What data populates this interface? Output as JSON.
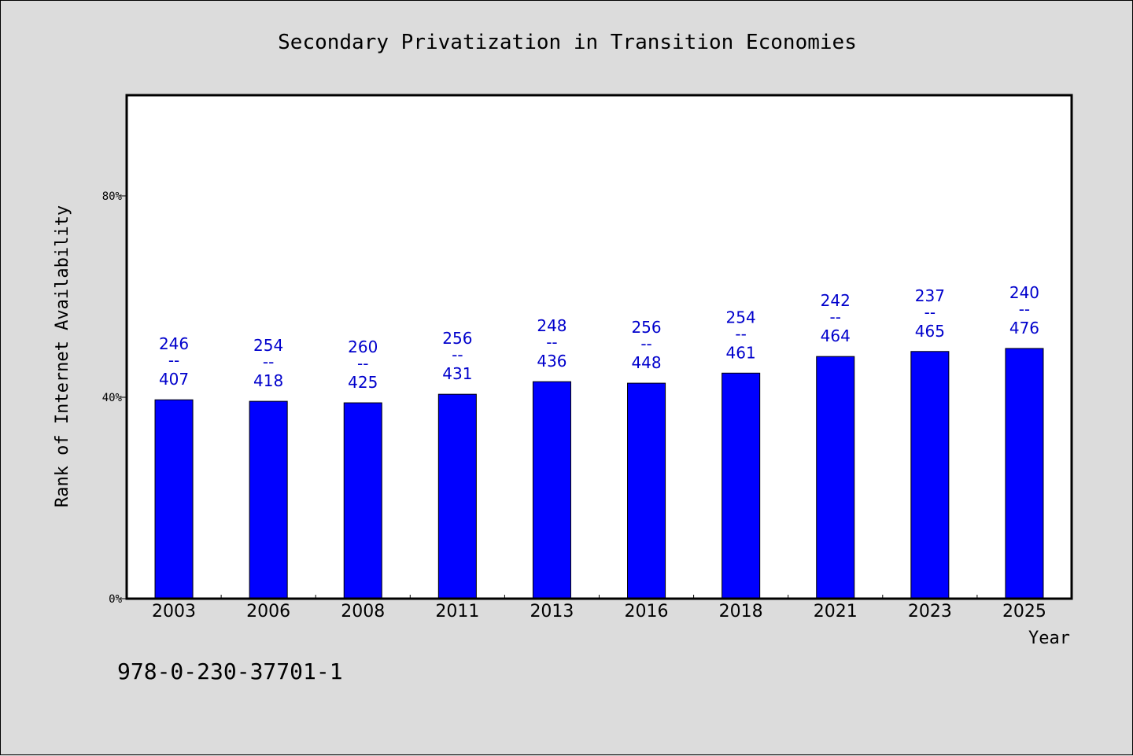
{
  "chart_data": {
    "type": "bar",
    "title": "Secondary Privatization in Transition Economies",
    "xlabel": "Year",
    "ylabel": "Rank of Internet Availability",
    "categories": [
      "2003",
      "2006",
      "2008",
      "2011",
      "2013",
      "2016",
      "2018",
      "2021",
      "2023",
      "2025"
    ],
    "values": [
      39.5,
      39.2,
      38.9,
      40.6,
      43.1,
      42.8,
      44.8,
      48.1,
      49.1,
      49.7
    ],
    "value_unit": "%",
    "labels_top": [
      "246",
      "254",
      "260",
      "256",
      "248",
      "256",
      "254",
      "242",
      "237",
      "240"
    ],
    "labels_sep": "--",
    "labels_bottom": [
      "407",
      "418",
      "425",
      "431",
      "436",
      "448",
      "461",
      "464",
      "465",
      "476"
    ],
    "yticks": [
      "0%",
      "40%",
      "80%"
    ],
    "ytick_values": [
      0,
      40,
      80
    ],
    "ylim": [
      0,
      100
    ],
    "grid": false,
    "bar_color": "#0000ff",
    "label_color": "#0000cc"
  },
  "footnote": "978-0-230-37701-1"
}
